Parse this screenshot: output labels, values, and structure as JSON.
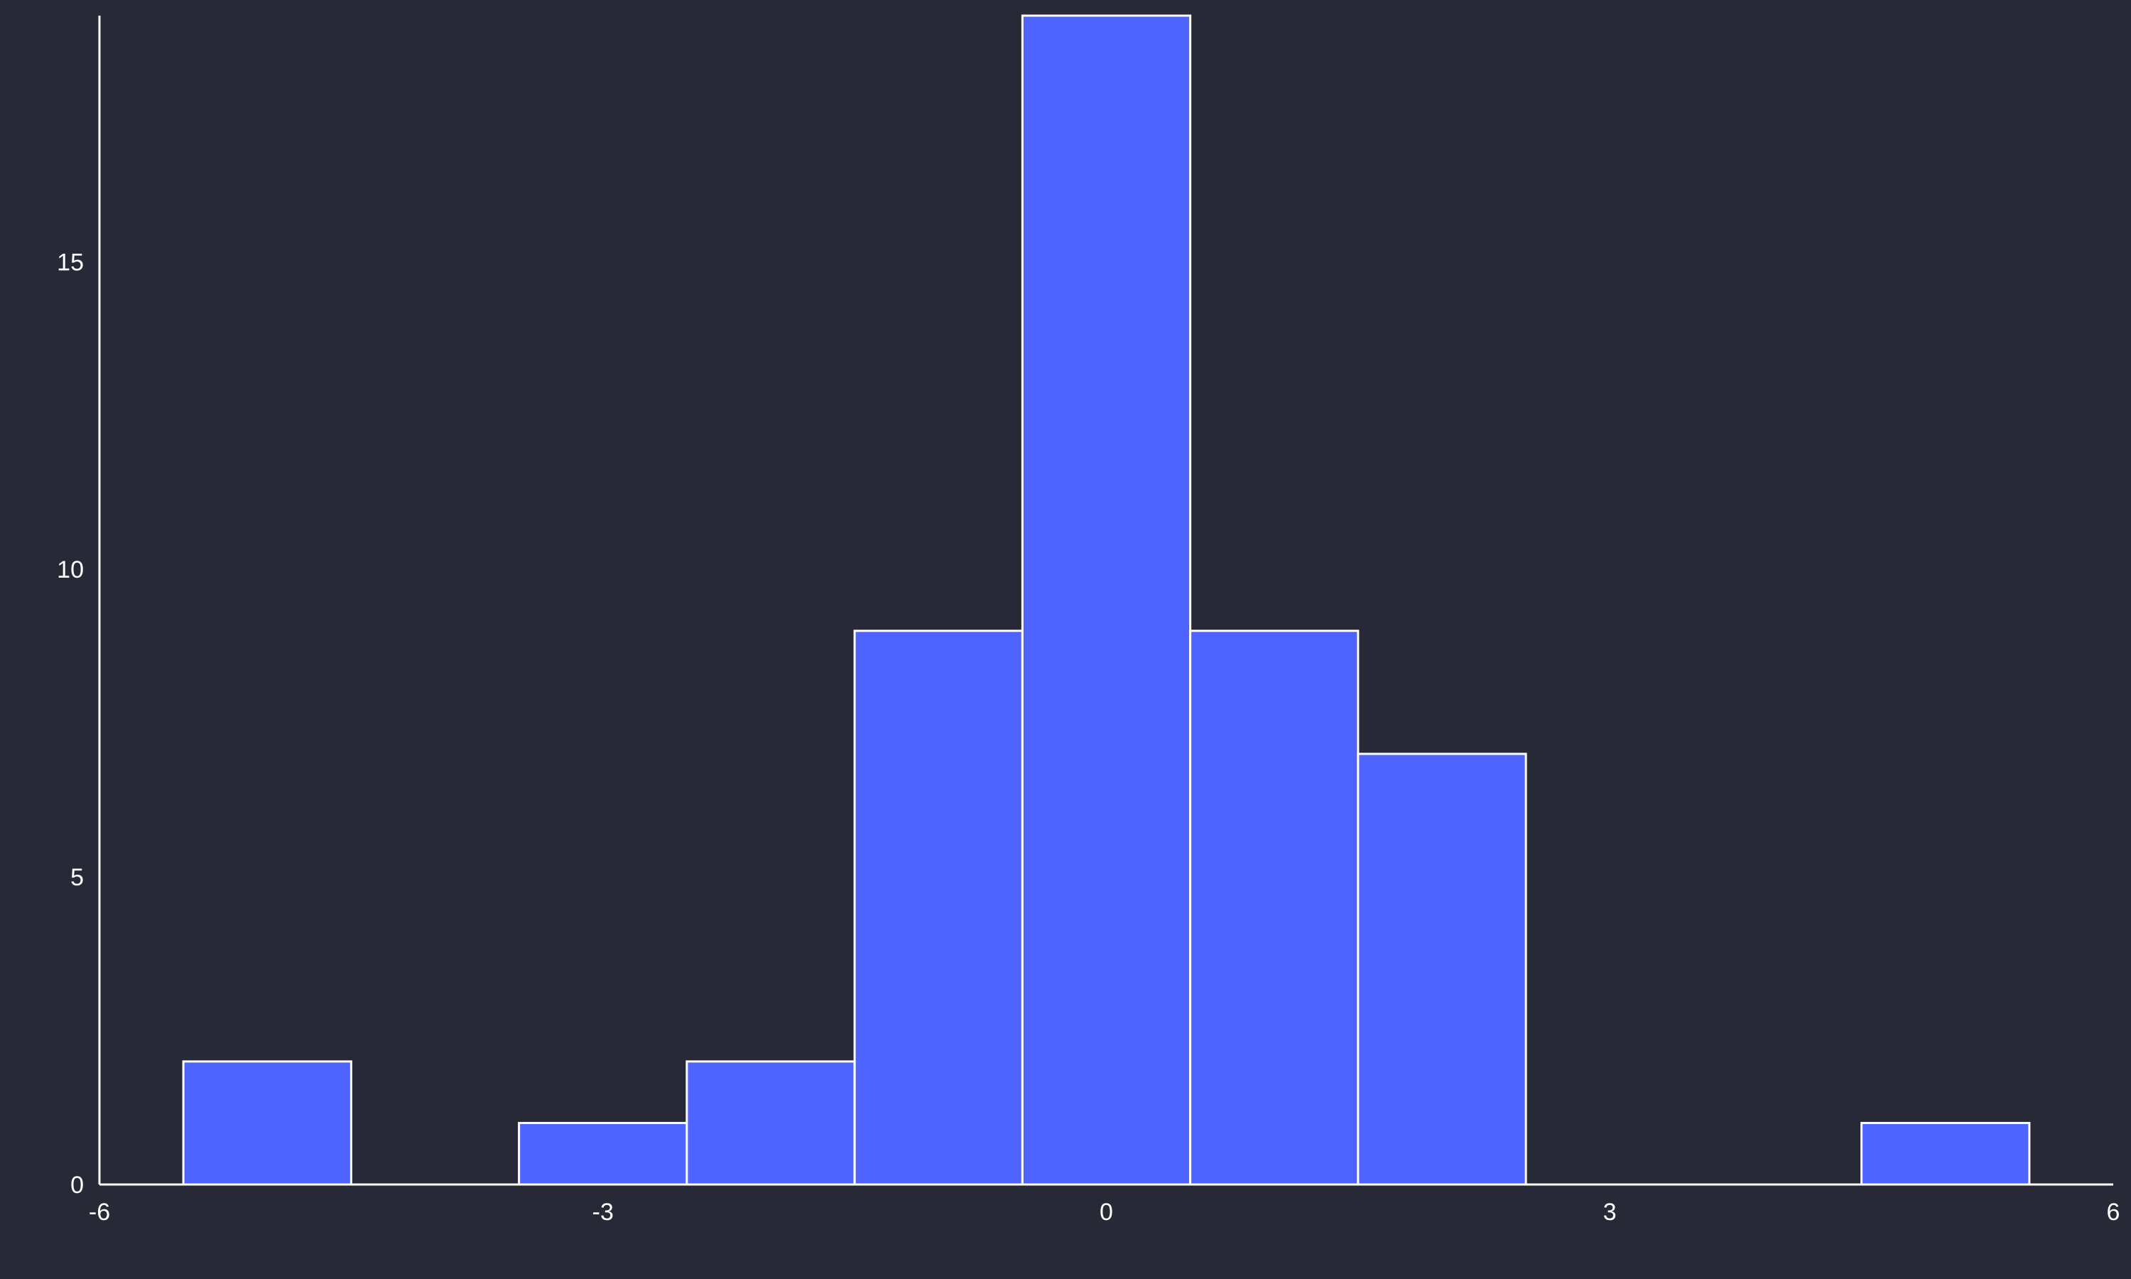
{
  "chart_data": {
    "type": "histogram",
    "title": "",
    "xlabel": "",
    "ylabel": "",
    "xlim": [
      -6,
      6
    ],
    "ylim": [
      0,
      19
    ],
    "x_ticks": [
      -6,
      -3,
      0,
      3,
      6
    ],
    "x_tick_labels": [
      "-6",
      "-3",
      "0",
      "3",
      "6"
    ],
    "y_ticks": [
      0,
      5,
      10,
      15
    ],
    "y_tick_labels": [
      "0",
      "5",
      "10",
      "15"
    ],
    "grid": false,
    "bar_color": "#4f64ff",
    "edge_color": "#ffffff",
    "background_color": "#272a36",
    "bins": [
      {
        "x0": -5.5,
        "x1": -4.5,
        "count": 2
      },
      {
        "x0": -4.5,
        "x1": -3.5,
        "count": 0
      },
      {
        "x0": -3.5,
        "x1": -2.5,
        "count": 1
      },
      {
        "x0": -2.5,
        "x1": -1.5,
        "count": 2
      },
      {
        "x0": -1.5,
        "x1": -0.5,
        "count": 9
      },
      {
        "x0": -0.5,
        "x1": 0.5,
        "count": 19
      },
      {
        "x0": 0.5,
        "x1": 1.5,
        "count": 9
      },
      {
        "x0": 1.5,
        "x1": 2.5,
        "count": 7
      },
      {
        "x0": 2.5,
        "x1": 3.5,
        "count": 0
      },
      {
        "x0": 3.5,
        "x1": 4.5,
        "count": 0
      },
      {
        "x0": 4.5,
        "x1": 5.5,
        "count": 1
      }
    ]
  }
}
